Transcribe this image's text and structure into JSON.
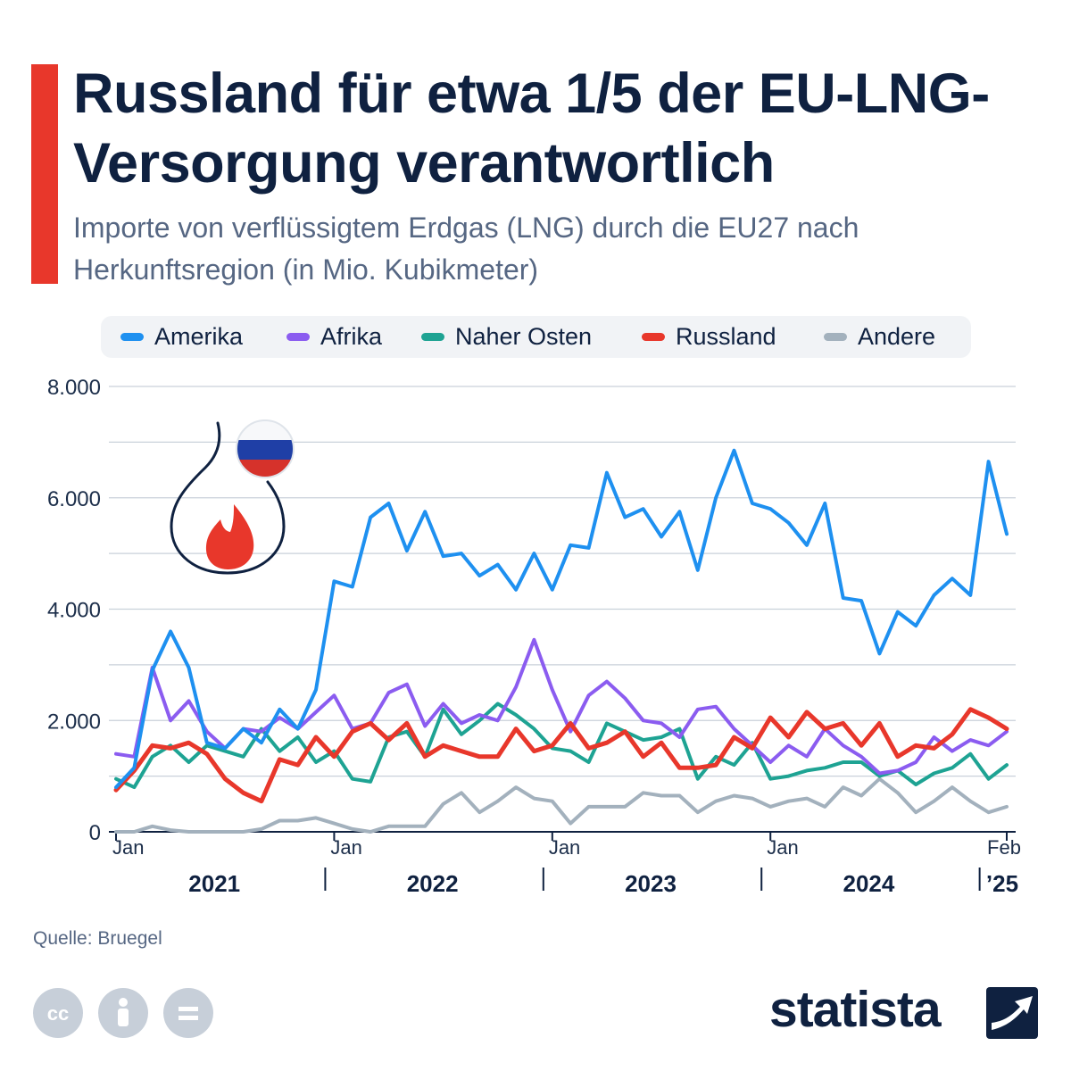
{
  "header": {
    "title": "Russland für etwa 1/5 der EU-LNG-Versorgung verantwortlich",
    "subtitle": "Importe von verflüssigtem Erdgas (LNG) durch die EU27 nach Herkunftsregion (in Mio. Kubikmeter)"
  },
  "legend": [
    {
      "label": "Amerika",
      "color": "#1e90f0"
    },
    {
      "label": "Afrika",
      "color": "#8b5cf0"
    },
    {
      "label": "Naher Osten",
      "color": "#1ea393"
    },
    {
      "label": "Russland",
      "color": "#e8372b"
    },
    {
      "label": "Andere",
      "color": "#a3b1bd"
    }
  ],
  "chart_data": {
    "type": "line",
    "ylim": [
      0,
      8000
    ],
    "y_ticks": [
      0,
      2000,
      4000,
      6000,
      8000
    ],
    "y_tick_labels": [
      "0",
      "2.000",
      "4.000",
      "6.000",
      "8.000"
    ],
    "x_range": [
      "2021-01",
      "2025-02"
    ],
    "x_tick_labels": [
      "Jan",
      "Jan",
      "Jan",
      "Jan",
      "Feb"
    ],
    "year_labels": [
      "2021",
      "2022",
      "2023",
      "2024",
      "’25"
    ],
    "grid": true,
    "legend_position": "top",
    "series": [
      {
        "name": "Amerika",
        "color": "#1e90f0",
        "values": [
          800,
          1150,
          2900,
          3600,
          2950,
          1600,
          1500,
          1850,
          1600,
          2200,
          1850,
          2550,
          4500,
          4400,
          5650,
          5900,
          5050,
          5750,
          4950,
          5000,
          4600,
          4800,
          4350,
          5000,
          4350,
          5150,
          5100,
          6450,
          5650,
          5800,
          5300,
          5750,
          4700,
          6000,
          6850,
          5900,
          5800,
          5550,
          5150,
          5900,
          4200,
          4150,
          3200,
          3950,
          3700,
          4250,
          4550,
          4250,
          6650,
          5350
        ]
      },
      {
        "name": "Afrika",
        "color": "#8b5cf0",
        "values": [
          1400,
          1350,
          2950,
          2000,
          2350,
          1800,
          1500,
          1850,
          1800,
          2050,
          1850,
          2150,
          2450,
          1850,
          1950,
          2500,
          2650,
          1900,
          2300,
          1950,
          2100,
          2000,
          2600,
          3450,
          2550,
          1800,
          2450,
          2700,
          2400,
          2000,
          1950,
          1700,
          2200,
          2250,
          1850,
          1550,
          1250,
          1550,
          1350,
          1850,
          1550,
          1350,
          1050,
          1100,
          1250,
          1700,
          1450,
          1650,
          1550,
          1800
        ]
      },
      {
        "name": "Naher Osten",
        "color": "#1ea393",
        "values": [
          950,
          800,
          1350,
          1550,
          1250,
          1550,
          1450,
          1350,
          1850,
          1450,
          1700,
          1250,
          1450,
          950,
          900,
          1700,
          1800,
          1350,
          2200,
          1750,
          2000,
          2300,
          2100,
          1850,
          1500,
          1450,
          1250,
          1950,
          1800,
          1650,
          1700,
          1850,
          950,
          1350,
          1200,
          1600,
          950,
          1000,
          1100,
          1150,
          1250,
          1250,
          1000,
          1100,
          850,
          1050,
          1150,
          1400,
          950,
          1200
        ]
      },
      {
        "name": "Russland",
        "color": "#e8372b",
        "values": [
          750,
          1100,
          1550,
          1500,
          1600,
          1400,
          950,
          700,
          550,
          1300,
          1200,
          1700,
          1350,
          1800,
          1950,
          1650,
          1950,
          1350,
          1550,
          1450,
          1350,
          1350,
          1850,
          1450,
          1550,
          1950,
          1500,
          1600,
          1800,
          1350,
          1600,
          1150,
          1150,
          1200,
          1700,
          1500,
          2050,
          1700,
          2150,
          1850,
          1950,
          1550,
          1950,
          1350,
          1550,
          1500,
          1750,
          2200,
          2050,
          1850
        ]
      },
      {
        "name": "Andere",
        "color": "#a3b1bd",
        "values": [
          0,
          0,
          100,
          30,
          0,
          0,
          0,
          0,
          50,
          200,
          200,
          250,
          150,
          50,
          0,
          100,
          100,
          100,
          500,
          700,
          350,
          550,
          800,
          600,
          550,
          150,
          450,
          450,
          450,
          700,
          650,
          650,
          350,
          550,
          650,
          600,
          450,
          550,
          600,
          450,
          800,
          650,
          950,
          700,
          350,
          550,
          800,
          550,
          350,
          450
        ]
      }
    ]
  },
  "footer": {
    "source": "Quelle: Bruegel",
    "brand": "statista",
    "cc_icons": [
      "cc-icon",
      "attribution-icon",
      "no-derivatives-icon"
    ]
  }
}
